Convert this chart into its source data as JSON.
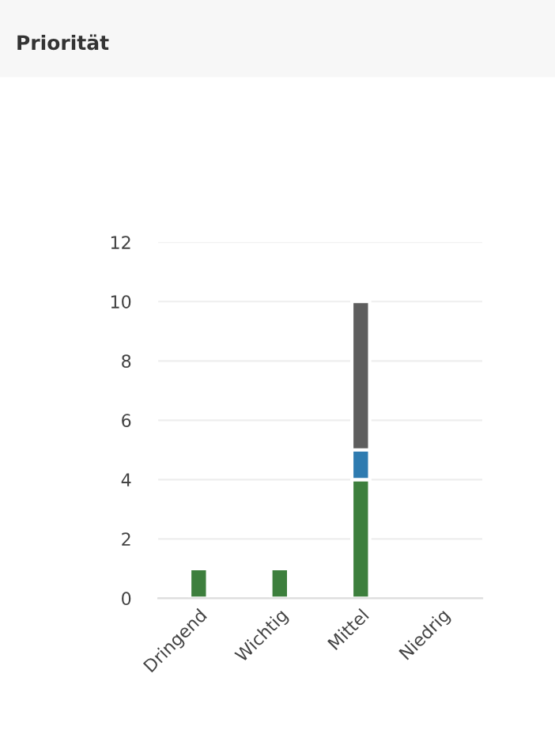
{
  "chart_data": {
    "type": "bar",
    "title": "Priorität",
    "categories": [
      "Dringend",
      "Wichtig",
      "Mittel",
      "Niedrig"
    ],
    "stacked": true,
    "series": [
      {
        "color": "#3d7f3d",
        "values": [
          1,
          1,
          4,
          0
        ]
      },
      {
        "color": "#2e7bb0",
        "values": [
          0,
          0,
          1,
          0
        ]
      },
      {
        "color": "#5e5e5e",
        "values": [
          0,
          0,
          5,
          0
        ]
      }
    ],
    "ylim": [
      0,
      12
    ],
    "yticks": [
      0,
      2,
      4,
      6,
      8,
      10,
      12
    ],
    "grid": "y",
    "legend": false
  }
}
